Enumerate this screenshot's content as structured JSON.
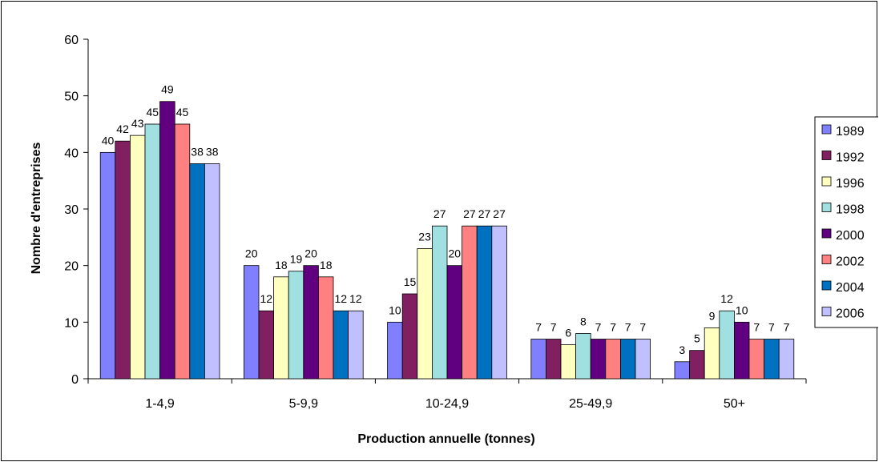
{
  "chart_data": {
    "type": "bar",
    "title": "",
    "xlabel": "Production annuelle (tonnes)",
    "ylabel": "Nombre d'entreprises",
    "ylim": [
      0,
      60
    ],
    "yticks": [
      0,
      10,
      20,
      30,
      40,
      50,
      60
    ],
    "grid": false,
    "legend_position": "right",
    "categories": [
      "1-4,9",
      "5-9,9",
      "10-24,9",
      "25-49,9",
      "50+"
    ],
    "series": [
      {
        "name": "1989",
        "color": "#8080ff",
        "values": [
          40,
          20,
          10,
          7,
          3
        ]
      },
      {
        "name": "1992",
        "color": "#802060",
        "values": [
          42,
          12,
          15,
          7,
          5
        ]
      },
      {
        "name": "1996",
        "color": "#ffffc0",
        "values": [
          43,
          18,
          23,
          6,
          9
        ]
      },
      {
        "name": "1998",
        "color": "#a0e0e0",
        "values": [
          45,
          19,
          27,
          8,
          12
        ]
      },
      {
        "name": "2000",
        "color": "#600080",
        "values": [
          49,
          20,
          20,
          7,
          10
        ]
      },
      {
        "name": "2002",
        "color": "#ff8080",
        "values": [
          45,
          18,
          27,
          7,
          7
        ]
      },
      {
        "name": "2004",
        "color": "#0070c0",
        "values": [
          38,
          12,
          27,
          7,
          7
        ]
      },
      {
        "name": "2006",
        "color": "#c0c0ff",
        "values": [
          38,
          12,
          27,
          7,
          7
        ]
      }
    ]
  }
}
